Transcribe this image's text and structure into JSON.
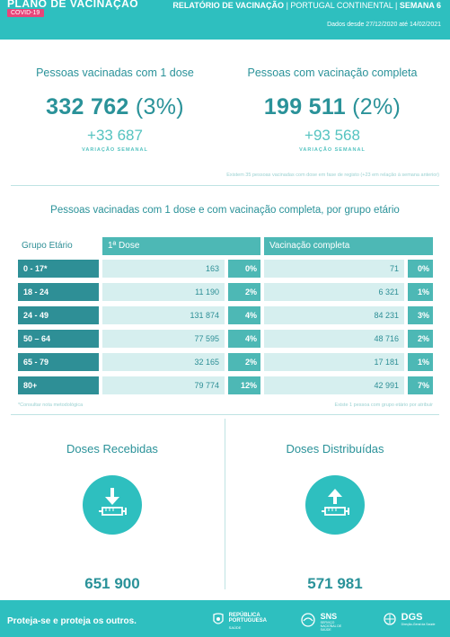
{
  "header": {
    "brand_title": "PLANO DE VACINAÇÃO",
    "brand_badge": "COVID-19",
    "report_title": "RELATÓRIO DE VACINAÇÃO",
    "report_scope": "PORTUGAL CONTINENTAL",
    "report_week": "SEMANA 6",
    "date_range": "Dados desde 27/12/2020 até 14/02/2021"
  },
  "stats": {
    "one_dose": {
      "title": "Pessoas vacinadas com 1 dose",
      "value": "332 762",
      "percent": "(3%)",
      "variation": "+33 687",
      "variation_label": "VARIAÇÃO SEMANAL"
    },
    "complete": {
      "title": "Pessoas com vacinação completa",
      "value": "199 511",
      "percent": "(2%)",
      "variation": "+93 568",
      "variation_label": "VARIAÇÃO SEMANAL"
    },
    "note": "Existem 35 pessoas vacinadas com dose em fase de registo (+23 em relação à semana anterior)"
  },
  "age_table": {
    "title": "Pessoas vacinadas com 1 dose e com vacinação completa, por grupo etário",
    "headers": {
      "age": "Grupo Etário",
      "dose1": "1ª Dose",
      "complete": "Vacinação completa"
    },
    "rows": [
      {
        "age": "0 - 17*",
        "dose1": "163",
        "dose1_pct": "0%",
        "complete": "71",
        "complete_pct": "0%"
      },
      {
        "age": "18 - 24",
        "dose1": "11 190",
        "dose1_pct": "2%",
        "complete": "6 321",
        "complete_pct": "1%"
      },
      {
        "age": "24 - 49",
        "dose1": "131 874",
        "dose1_pct": "4%",
        "complete": "84 231",
        "complete_pct": "3%"
      },
      {
        "age": "50 – 64",
        "dose1": "77 595",
        "dose1_pct": "4%",
        "complete": "48 716",
        "complete_pct": "2%"
      },
      {
        "age": "65 - 79",
        "dose1": "32 165",
        "dose1_pct": "2%",
        "complete": "17 181",
        "complete_pct": "1%"
      },
      {
        "age": "80+",
        "dose1": "79 774",
        "dose1_pct": "12%",
        "complete": "42 991",
        "complete_pct": "7%"
      }
    ],
    "foot_left": "*Consultar nota metodológica",
    "foot_right": "Existe 1 pessoa com grupo etário por atribuir"
  },
  "doses": {
    "received": {
      "title": "Doses Recebidas",
      "value": "651 900",
      "icon": "syringe-arrow-down-icon"
    },
    "distributed": {
      "title": "Doses Distribuídas",
      "value": "571 981",
      "icon": "syringe-arrow-up-icon"
    }
  },
  "footer": {
    "slogan": "Proteja-se e proteja os outros.",
    "logo_republica_line1": "REPÚBLICA",
    "logo_republica_line2": "PORTUGUESA",
    "logo_republica_line3": "SAÚDE",
    "logo_sns": "SNS",
    "logo_sns_sub": "SERVIÇO NACIONAL DE SAÚDE",
    "logo_dgs": "DGS",
    "logo_dgs_sub": "Direção-Geral da Saúde"
  },
  "colors": {
    "teal": "#2ebfbf",
    "dark_teal": "#2e8f96",
    "mid_teal": "#4db8b5",
    "light_teal": "#d6efef",
    "pink": "#e8457a"
  }
}
